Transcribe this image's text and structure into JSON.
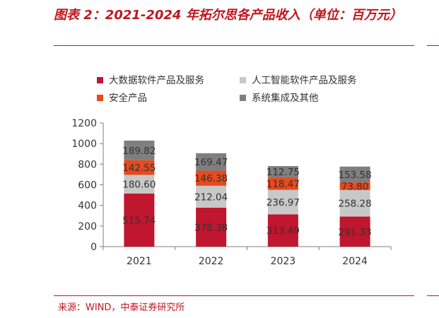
{
  "header": {
    "title": "图表 2：2021-2024 年拓尔思各产品收入（单位：百万元）"
  },
  "footer": {
    "source": "来源：WIND，中泰证券研究所"
  },
  "chart_data": {
    "type": "bar",
    "stacked": true,
    "title": "图表 2：2021-2024 年拓尔思各产品收入（单位：百万元）",
    "categories": [
      "2021",
      "2022",
      "2023",
      "2024"
    ],
    "series": [
      {
        "name": "大数据软件产品及服务",
        "color": "#c0162f",
        "values": [
          515.74,
          378.38,
          313.49,
          291.33
        ],
        "labels": [
          "515.74",
          "378.38",
          "313.49",
          "291.33"
        ]
      },
      {
        "name": "人工智能软件产品及服务",
        "color": "#c8c8c8",
        "values": [
          180.6,
          212.04,
          236.97,
          258.28
        ],
        "labels": [
          "180.60",
          "212.04",
          "236.97",
          "258.28"
        ]
      },
      {
        "name": "安全产品",
        "color": "#e8491d",
        "values": [
          142.55,
          146.38,
          118.47,
          73.8
        ],
        "labels": [
          "142.55",
          "146.38",
          "118.47",
          "73.80"
        ]
      },
      {
        "name": "系统集成及其他",
        "color": "#7f7f7f",
        "values": [
          189.82,
          169.47,
          112.75,
          153.58
        ],
        "labels": [
          "189.82",
          "169.47",
          "112.75",
          "153.58"
        ]
      }
    ],
    "ylim": [
      0,
      1200
    ],
    "yticks": [
      0,
      200,
      400,
      600,
      800,
      1000,
      1200
    ],
    "ytick_labels": [
      "0",
      "200",
      "400",
      "600",
      "800",
      "1000",
      "1200"
    ],
    "grid": false,
    "legend_position": "top"
  }
}
